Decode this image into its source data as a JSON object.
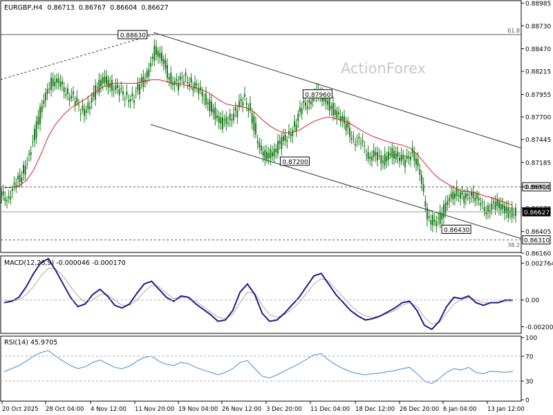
{
  "header": {
    "symbol": "EURGBP,H4",
    "open": "0.86713",
    "high": "0.86767",
    "low": "0.86604",
    "close": "0.86627"
  },
  "watermark": "ActionForex",
  "colors": {
    "candle": "#1a7a1a",
    "ma": "#d42020",
    "macd": "#1a1a8c",
    "signal": "#c0a0a0",
    "rsi": "#3c8ccf",
    "trend": "#000000",
    "grid": "#888888"
  },
  "chart_data": [
    {
      "type": "candlestick",
      "title": "EURGBP,H4",
      "ylim": [
        0.8616,
        0.8899
      ],
      "y_ticks": [
        "0.88985",
        "0.88730",
        "0.88470",
        "0.88215",
        "0.87955",
        "0.87700",
        "0.87445",
        "0.87185",
        "0.86910",
        "0.86670",
        "0.86405",
        "0.86160"
      ],
      "x_ticks": [
        "20 Oct 2025",
        "28 Oct 04:00",
        "4 Nov 12:00",
        "11 Nov 20:00",
        "19 Nov 04:00",
        "26 Nov 12:00",
        "3 Dec 20:00",
        "11 Dec 04:00",
        "18 Dec 12:00",
        "26 Dec 20:00",
        "6 Jan 04:00",
        "13 Jan 12:00"
      ],
      "close_series": [
        0.868,
        0.869,
        0.8705,
        0.8728,
        0.876,
        0.879,
        0.8812,
        0.8806,
        0.88,
        0.879,
        0.8775,
        0.8782,
        0.88,
        0.8812,
        0.8808,
        0.8798,
        0.8795,
        0.879,
        0.8805,
        0.882,
        0.8845,
        0.8835,
        0.8815,
        0.8805,
        0.8815,
        0.8808,
        0.8798,
        0.879,
        0.8775,
        0.8762,
        0.8768,
        0.8775,
        0.879,
        0.878,
        0.8735,
        0.8728,
        0.8728,
        0.874,
        0.8748,
        0.876,
        0.878,
        0.879,
        0.8795,
        0.8792,
        0.878,
        0.877,
        0.876,
        0.8745,
        0.8738,
        0.8728,
        0.8725,
        0.872,
        0.873,
        0.8725,
        0.8718,
        0.8735,
        0.87,
        0.866,
        0.8648,
        0.866,
        0.868,
        0.8685,
        0.8675,
        0.8688,
        0.867,
        0.8665,
        0.8672,
        0.8668,
        0.8662,
        0.8663
      ],
      "series": [
        {
          "name": "",
          "role": "moving-average",
          "values": [
            0.869,
            0.869,
            0.8692,
            0.8698,
            0.871,
            0.8728,
            0.8748,
            0.8762,
            0.8772,
            0.878,
            0.8785,
            0.879,
            0.8796,
            0.8802,
            0.8806,
            0.8808,
            0.8808,
            0.8808,
            0.8808,
            0.881,
            0.8812,
            0.8812,
            0.881,
            0.8808,
            0.8807,
            0.8805,
            0.8803,
            0.88,
            0.8796,
            0.879,
            0.8785,
            0.8783,
            0.8782,
            0.878,
            0.8775,
            0.8767,
            0.876,
            0.8755,
            0.8752,
            0.8752,
            0.8755,
            0.876,
            0.8765,
            0.8768,
            0.877,
            0.8768,
            0.8766,
            0.8762,
            0.8757,
            0.8752,
            0.8748,
            0.8745,
            0.8742,
            0.874,
            0.8738,
            0.8735,
            0.8728,
            0.8718,
            0.8708,
            0.87,
            0.8695,
            0.869,
            0.8686,
            0.8686,
            0.8684,
            0.8681,
            0.8679,
            0.8676,
            0.8673,
            0.867
          ]
        }
      ],
      "annotations": [
        {
          "label": "0.88630",
          "x": "11 Nov 20:00",
          "y": 0.8863
        },
        {
          "label": "0.87960",
          "x": "11 Dec 04:00",
          "y": 0.8796
        },
        {
          "label": "0.87200",
          "x": "3 Dec 20:00",
          "y": 0.872
        },
        {
          "label": "0.86430",
          "x": "6 Jan 04:00",
          "y": 0.8643
        }
      ],
      "levels": [
        {
          "label": "61.8",
          "value": 0.8863,
          "style": "solid"
        },
        {
          "label": "0.86910",
          "value": 0.8691,
          "style": "dashed"
        },
        {
          "label": "0.86627",
          "value": 0.86627,
          "style": "solid",
          "current": true
        },
        {
          "label": "38.2",
          "value": 0.8631,
          "style": "dashed",
          "price_label": "0.86310"
        }
      ]
    },
    {
      "type": "line",
      "title": "MACD(12,26,9) -0.000046 -0.000170",
      "ylim": [
        -0.0024,
        0.0032
      ],
      "y_ticks": [
        "0.002764",
        "0.00",
        "-0.002005"
      ],
      "series": [
        {
          "name": "",
          "values": [
            -0.0002,
            -0.0001,
            0.0002,
            0.001,
            0.002,
            0.0028,
            0.0031,
            0.0022,
            0.0012,
            0.0002,
            -0.0005,
            -0.0003,
            0.0004,
            0.0008,
            0.0003,
            -0.0004,
            -0.0006,
            -0.0003,
            0.0005,
            0.0012,
            0.0014,
            0.0008,
            0.0002,
            -0.0001,
            0.0003,
            0.0002,
            -0.0003,
            -0.0007,
            -0.0011,
            -0.0016,
            -0.0015,
            -0.0008,
            0.0006,
            0.0012,
            0.0004,
            -0.001,
            -0.0016,
            -0.0015,
            -0.001,
            -0.0004,
            0.0002,
            0.001,
            0.0018,
            0.002,
            0.0012,
            0.0004,
            -0.0002,
            -0.0008,
            -0.0012,
            -0.0015,
            -0.0014,
            -0.0012,
            -0.0009,
            -0.0006,
            -0.0002,
            -0.0001,
            -0.0008,
            -0.0019,
            -0.0022,
            -0.0016,
            -0.0005,
            0.0002,
            0.0001,
            0.0003,
            -0.0002,
            -0.0004,
            -0.0002,
            -0.0002,
            0.0,
            0.0
          ]
        },
        {
          "name": "",
          "values": [
            0.0,
            -0.0001,
            0.0,
            0.0004,
            0.001,
            0.0018,
            0.0024,
            0.0023,
            0.0018,
            0.001,
            0.0003,
            -0.0002,
            0.0,
            0.0004,
            0.0004,
            0.0,
            -0.0004,
            -0.0004,
            0.0,
            0.0006,
            0.0011,
            0.001,
            0.0005,
            0.0001,
            0.0002,
            0.0002,
            -0.0001,
            -0.0005,
            -0.0009,
            -0.0013,
            -0.0014,
            -0.0011,
            -0.0002,
            0.0006,
            0.0005,
            -0.0004,
            -0.0011,
            -0.0013,
            -0.0011,
            -0.0007,
            -0.0002,
            0.0005,
            0.0012,
            0.0016,
            0.0014,
            0.0008,
            0.0002,
            -0.0004,
            -0.0009,
            -0.0012,
            -0.0013,
            -0.0012,
            -0.001,
            -0.0008,
            -0.0004,
            -0.0002,
            -0.0005,
            -0.0013,
            -0.0018,
            -0.0017,
            -0.001,
            -0.0003,
            0.0,
            0.0002,
            0.0,
            -0.0002,
            -0.0002,
            -0.0002,
            -0.0001,
            -0.0001
          ]
        }
      ]
    },
    {
      "type": "line",
      "title": "RSI(14) 45.9705",
      "ylim": [
        0,
        100
      ],
      "y_ticks": [
        "100",
        "70",
        "30",
        "0"
      ],
      "levels": [
        70,
        30
      ],
      "series": [
        {
          "name": "",
          "values": [
            45,
            50,
            55,
            62,
            70,
            76,
            79,
            70,
            62,
            55,
            50,
            53,
            60,
            64,
            58,
            52,
            50,
            54,
            62,
            68,
            70,
            62,
            57,
            55,
            60,
            58,
            52,
            48,
            44,
            40,
            44,
            50,
            60,
            63,
            50,
            38,
            35,
            40,
            46,
            52,
            58,
            65,
            72,
            74,
            64,
            56,
            50,
            45,
            42,
            40,
            42,
            43,
            45,
            47,
            50,
            52,
            42,
            30,
            26,
            34,
            44,
            50,
            48,
            52,
            44,
            42,
            46,
            45,
            44,
            46
          ]
        }
      ]
    }
  ]
}
